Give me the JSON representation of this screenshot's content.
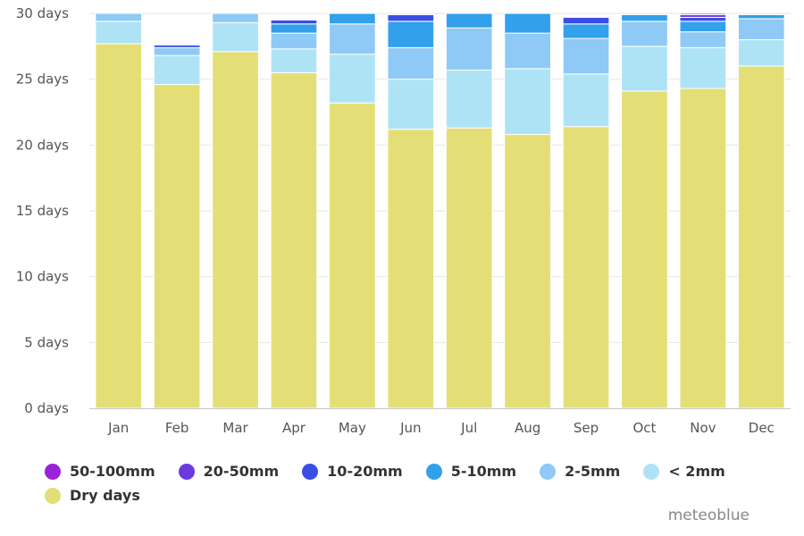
{
  "chart_data": {
    "type": "bar",
    "stacked": true,
    "categories": [
      "Jan",
      "Feb",
      "Mar",
      "Apr",
      "May",
      "Jun",
      "Jul",
      "Aug",
      "Sep",
      "Oct",
      "Nov",
      "Dec"
    ],
    "ylim": [
      0,
      30
    ],
    "yticks": [
      0,
      5,
      10,
      15,
      20,
      25,
      30
    ],
    "ytick_labels": [
      "0 days",
      "5 days",
      "10 days",
      "15 days",
      "20 days",
      "25 days",
      "30 days"
    ],
    "grid": true,
    "legend_position": "bottom-left",
    "series": [
      {
        "name": "Dry days",
        "color": "#e3df76",
        "values": [
          27.7,
          24.6,
          27.1,
          25.5,
          23.2,
          21.2,
          21.3,
          20.8,
          21.4,
          24.1,
          24.3,
          26.0
        ]
      },
      {
        "name": "< 2mm",
        "color": "#aee3f6",
        "values": [
          1.7,
          2.2,
          2.2,
          1.8,
          3.7,
          3.8,
          4.4,
          5.0,
          4.0,
          3.4,
          3.1,
          2.0
        ]
      },
      {
        "name": "2-5mm",
        "color": "#8ecaf5",
        "values": [
          0.6,
          0.6,
          0.7,
          1.2,
          2.3,
          2.4,
          3.2,
          2.7,
          2.7,
          1.9,
          1.2,
          1.6
        ]
      },
      {
        "name": "5-10mm",
        "color": "#32a0ea",
        "values": [
          0,
          0,
          0,
          0.7,
          0.8,
          2.0,
          1.1,
          1.5,
          1.1,
          0.5,
          0.8,
          0.3
        ]
      },
      {
        "name": "10-20mm",
        "color": "#3a4ee6",
        "values": [
          0,
          0.2,
          0,
          0.3,
          0,
          0.5,
          0,
          0,
          0.5,
          0,
          0.3,
          0
        ]
      },
      {
        "name": "20-50mm",
        "color": "#6a3ae0",
        "values": [
          0,
          0,
          0,
          0,
          0,
          0,
          0,
          0,
          0,
          0,
          0.2,
          0
        ]
      },
      {
        "name": "50-100mm",
        "color": "#9a22d8",
        "values": [
          0,
          0,
          0,
          0,
          0,
          0,
          0,
          0,
          0,
          0,
          0.1,
          0
        ]
      }
    ]
  },
  "legend": [
    {
      "label": "50-100mm",
      "color": "#9a22d8"
    },
    {
      "label": "20-50mm",
      "color": "#6a3ae0"
    },
    {
      "label": "10-20mm",
      "color": "#3a4ee6"
    },
    {
      "label": "5-10mm",
      "color": "#32a0ea"
    },
    {
      "label": "2-5mm",
      "color": "#8ecaf5"
    },
    {
      "label": "< 2mm",
      "color": "#aee3f6"
    },
    {
      "label": "Dry days",
      "color": "#e3df76"
    }
  ],
  "credit": "meteoblue"
}
